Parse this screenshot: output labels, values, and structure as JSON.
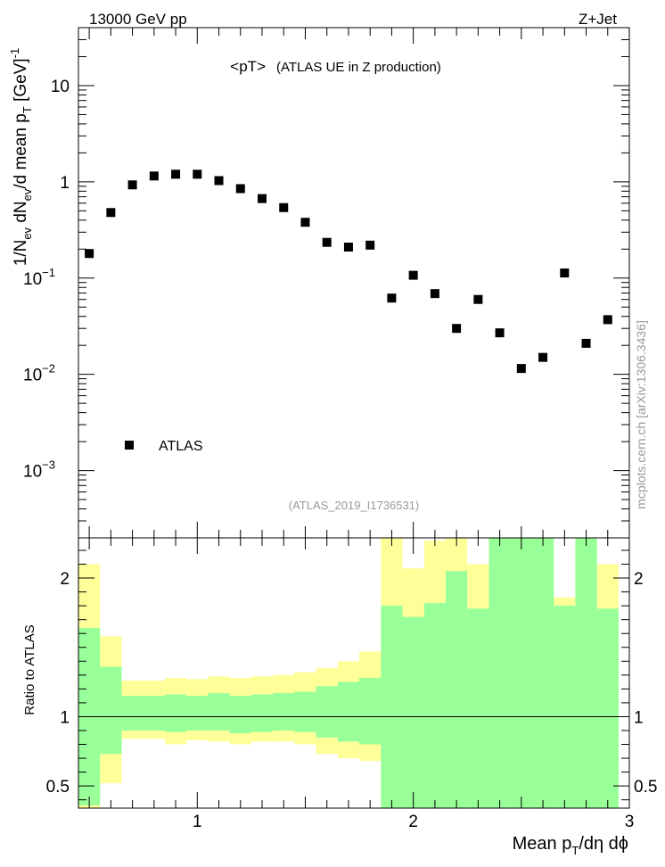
{
  "header": {
    "left": "13000 GeV pp",
    "right": "Z+Jet"
  },
  "side_label": "mcplots.cern.ch [arXiv:1306.3436]",
  "chart_data": [
    {
      "panel": "main",
      "type": "scatter",
      "title_main": "<pT>",
      "title_sub": "(ATLAS UE in Z production)",
      "analysis_id": "(ATLAS_2019_I1736531)",
      "ylabel": "1/N_ev dN_ev/d mean p_T [GeV]^-1",
      "yscale": "log",
      "ylim": [
        0.0002,
        40
      ],
      "y_ticks": [
        {
          "v": 10,
          "label": "10",
          "sup": ""
        },
        {
          "v": 1,
          "label": "1",
          "sup": ""
        },
        {
          "v": 0.1,
          "label": "10",
          "sup": "−1"
        },
        {
          "v": 0.01,
          "label": "10",
          "sup": "−2"
        },
        {
          "v": 0.001,
          "label": "10",
          "sup": "−3"
        }
      ],
      "legend": {
        "label": "ATLAS",
        "position": "bottom-left"
      },
      "series": [
        {
          "name": "ATLAS",
          "x": [
            0.5,
            0.6,
            0.7,
            0.8,
            0.9,
            1.0,
            1.1,
            1.2,
            1.3,
            1.4,
            1.5,
            1.6,
            1.7,
            1.8,
            1.9,
            2.0,
            2.1,
            2.2,
            2.3,
            2.4,
            2.5,
            2.6,
            2.7,
            2.8,
            2.9
          ],
          "y": [
            0.18,
            0.48,
            0.93,
            1.15,
            1.2,
            1.2,
            1.03,
            0.85,
            0.67,
            0.54,
            0.38,
            0.235,
            0.21,
            0.22,
            0.062,
            0.107,
            0.069,
            0.03,
            0.06,
            0.027,
            0.0115,
            0.015,
            0.113,
            0.021,
            0.037
          ]
        }
      ]
    },
    {
      "panel": "ratio",
      "type": "area",
      "ylabel": "Ratio to ATLAS",
      "xlabel": "Mean p_T/dη dφ",
      "xlim": [
        0.45,
        3.0
      ],
      "ylim": [
        0.34,
        2.29
      ],
      "x_ticks": [
        "1",
        "2",
        "3"
      ],
      "y_ticks": [
        "0.5",
        "1",
        "2"
      ],
      "reference_line": 1,
      "bins": [
        0.45,
        0.55,
        0.65,
        0.75,
        0.85,
        0.95,
        1.05,
        1.15,
        1.25,
        1.35,
        1.45,
        1.55,
        1.65,
        1.75,
        1.85,
        1.95,
        2.05,
        2.15,
        2.25,
        2.35,
        2.45,
        2.55,
        2.65,
        2.75,
        2.85,
        2.95
      ],
      "band_yellow": {
        "upper": [
          2.1,
          1.58,
          1.26,
          1.26,
          1.28,
          1.27,
          1.29,
          1.28,
          1.29,
          1.3,
          1.32,
          1.35,
          1.4,
          1.47,
          2.4,
          2.07,
          2.27,
          2.4,
          2.1,
          2.4,
          2.4,
          2.4,
          1.86,
          2.4,
          2.1
        ],
        "lower": [
          0.34,
          0.52,
          0.84,
          0.84,
          0.8,
          0.83,
          0.82,
          0.8,
          0.82,
          0.82,
          0.8,
          0.73,
          0.7,
          0.68,
          0.34,
          0.34,
          0.34,
          0.34,
          0.34,
          0.34,
          0.34,
          0.34,
          0.58,
          0.34,
          0.34
        ]
      },
      "band_green": {
        "upper": [
          1.64,
          1.36,
          1.15,
          1.15,
          1.16,
          1.15,
          1.17,
          1.15,
          1.16,
          1.17,
          1.18,
          1.22,
          1.25,
          1.28,
          1.8,
          1.72,
          1.82,
          2.05,
          1.78,
          2.4,
          2.4,
          2.4,
          1.8,
          2.4,
          1.78
        ],
        "lower": [
          0.36,
          0.73,
          0.9,
          0.9,
          0.89,
          0.9,
          0.9,
          0.88,
          0.89,
          0.9,
          0.89,
          0.85,
          0.82,
          0.8,
          0.34,
          0.34,
          0.34,
          0.34,
          0.34,
          0.34,
          0.34,
          0.34,
          0.34,
          0.34,
          0.34
        ]
      },
      "colors": {
        "yellow": "#ffff99",
        "green": "#99ff99",
        "marker": "#000000"
      }
    }
  ]
}
